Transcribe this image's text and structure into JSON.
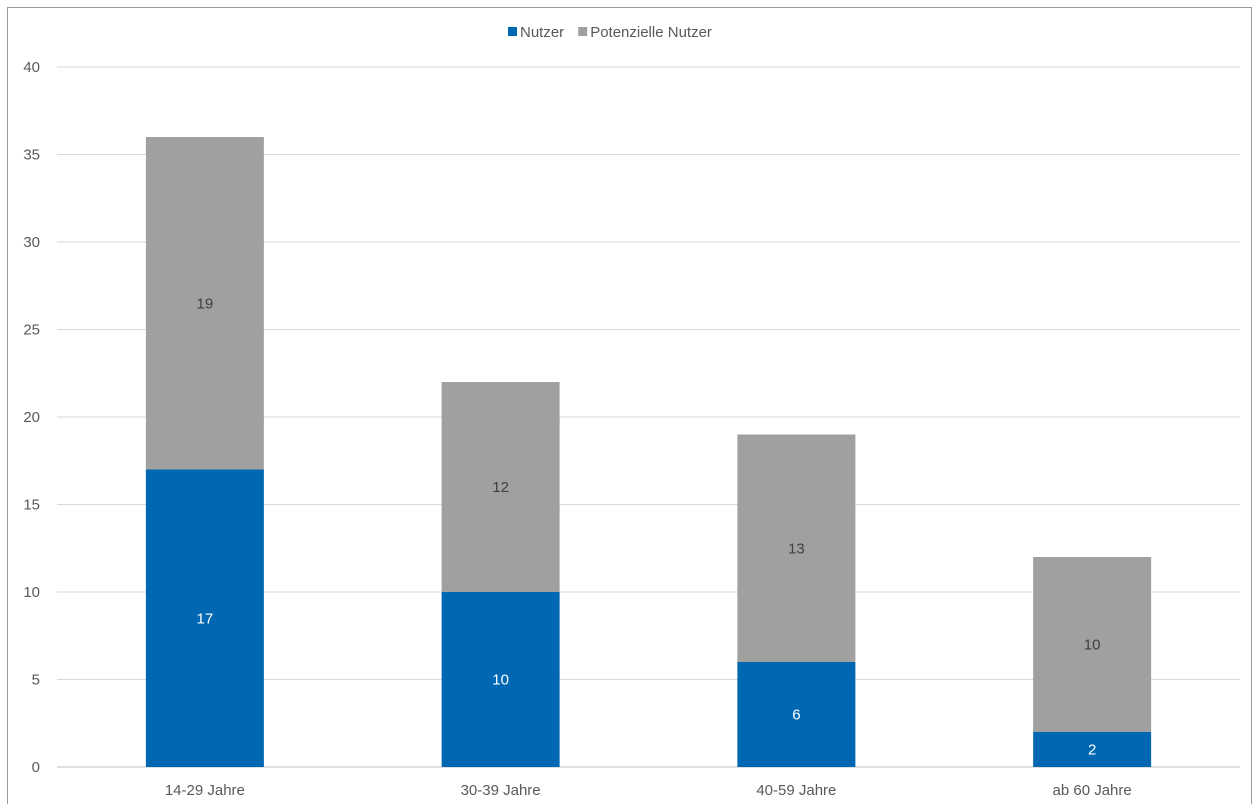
{
  "chart_data": {
    "type": "bar",
    "stacked": true,
    "categories": [
      "14-29 Jahre",
      "30-39 Jahre",
      "40-59 Jahre",
      "ab 60 Jahre"
    ],
    "series": [
      {
        "name": "Nutzer",
        "values": [
          17,
          10,
          6,
          2
        ],
        "color": "#0068b3",
        "label_color": "#ffffff"
      },
      {
        "name": "Potenzielle Nutzer",
        "values": [
          19,
          12,
          13,
          10
        ],
        "color": "#a0a0a0",
        "label_color": "#404040"
      }
    ],
    "ylim": [
      0,
      40
    ],
    "yticks": [
      0,
      5,
      10,
      15,
      20,
      25,
      30,
      35,
      40
    ],
    "grid": true,
    "legend": "top-center",
    "title": "",
    "xlabel": "",
    "ylabel": ""
  }
}
